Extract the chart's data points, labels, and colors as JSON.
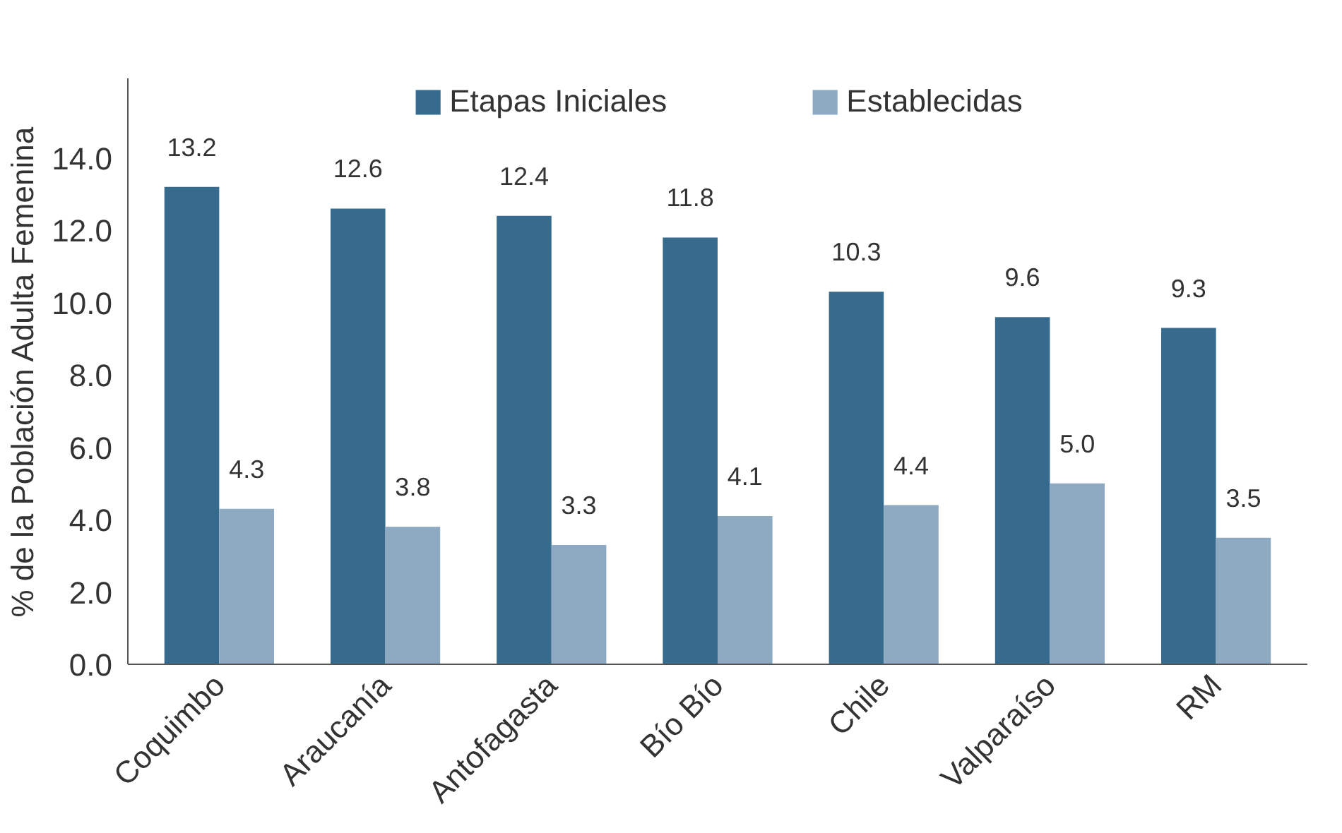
{
  "chart_data": {
    "type": "bar",
    "ylabel": "% de la Población Adulta Femenina",
    "categories": [
      "Coquimbo",
      "Araucanía",
      "Antofagasta",
      "Bío Bío",
      "Chile",
      "Valparaíso",
      "RM"
    ],
    "series": [
      {
        "name": "Etapas Iniciales",
        "color": "#376b8e",
        "values": [
          13.2,
          12.6,
          12.4,
          11.8,
          10.3,
          9.6,
          9.3
        ],
        "value_labels": [
          "13.2",
          "12.6",
          "12.4",
          "11.8",
          "10.3",
          "9.6",
          "9.3"
        ]
      },
      {
        "name": "Establecidas",
        "color": "#8eaac2",
        "values": [
          4.3,
          3.8,
          3.3,
          4.1,
          4.4,
          5.0,
          3.5
        ],
        "value_labels": [
          "4.3",
          "3.8",
          "3.3",
          "4.1",
          "4.4",
          "5.0",
          "3.5"
        ]
      }
    ],
    "ylim": [
      0,
      16.2
    ],
    "yticks": [
      {
        "value": 0,
        "label": "0.0"
      },
      {
        "value": 2,
        "label": "2.0"
      },
      {
        "value": 4,
        "label": "4.0"
      },
      {
        "value": 6,
        "label": "6.0"
      },
      {
        "value": 8,
        "label": "8.0"
      },
      {
        "value": 10,
        "label": "10.0"
      },
      {
        "value": 12,
        "label": "12.0"
      },
      {
        "value": 14,
        "label": "14.0"
      }
    ],
    "grid": false,
    "legend": "top"
  }
}
